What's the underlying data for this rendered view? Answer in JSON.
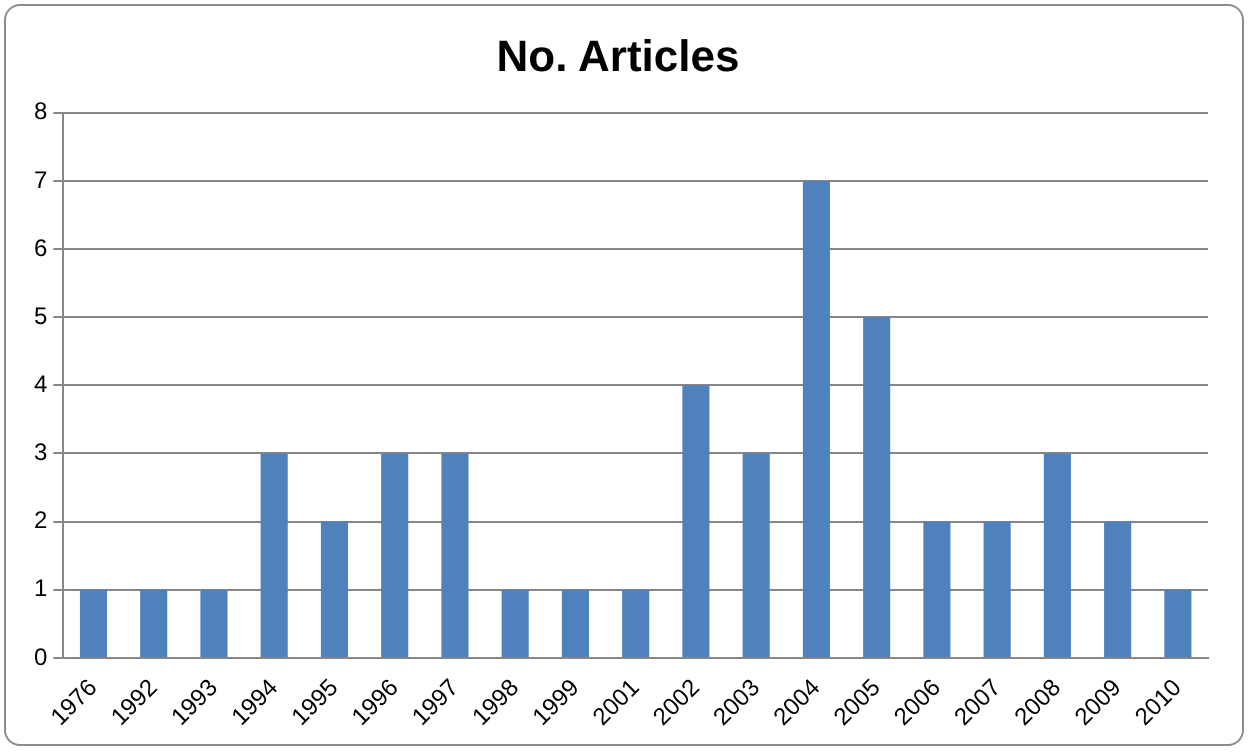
{
  "chart_data": {
    "type": "bar",
    "title": "No. Articles",
    "categories": [
      "1976",
      "1992",
      "1993",
      "1994",
      "1995",
      "1996",
      "1997",
      "1998",
      "1999",
      "2001",
      "2002",
      "2003",
      "2004",
      "2005",
      "2006",
      "2007",
      "2008",
      "2009",
      "2010"
    ],
    "values": [
      1,
      1,
      1,
      3,
      2,
      3,
      3,
      1,
      1,
      1,
      4,
      3,
      7,
      5,
      2,
      2,
      3,
      2,
      1
    ],
    "color": "#4f81bd",
    "ylim": [
      0,
      8
    ],
    "yticks": [
      0,
      1,
      2,
      3,
      4,
      5,
      6,
      7,
      8
    ],
    "grid": "y",
    "legend": false
  }
}
